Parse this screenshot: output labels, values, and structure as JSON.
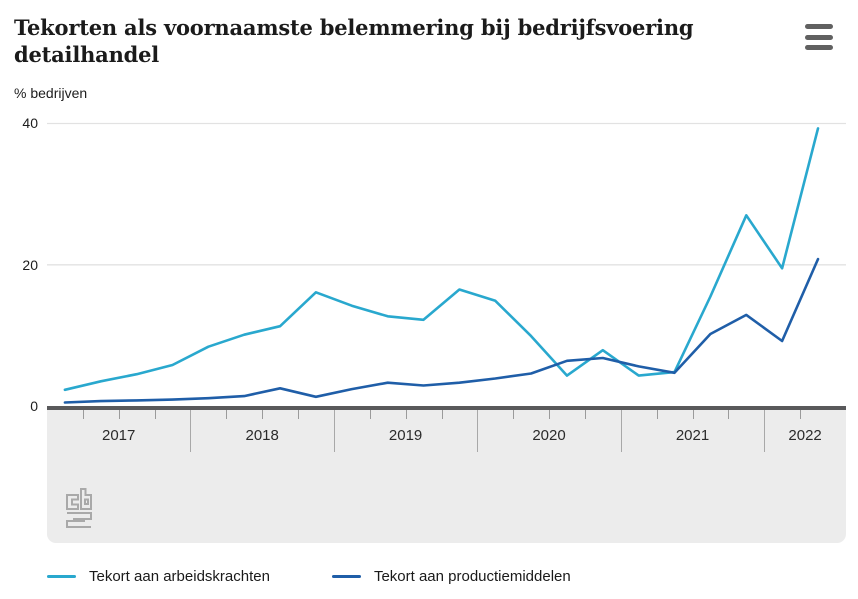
{
  "header": {
    "title": "Tekorten als voornaamste belemmering bij bedrijfsvoering detailhandel"
  },
  "subtitle": "% bedrijven",
  "icons": {
    "menu": "hamburger-menu-icon",
    "logo": "cbs-logo"
  },
  "chart_data": {
    "type": "line",
    "title": "Tekorten als voornaamste belemmering bij bedrijfsvoering detailhandel",
    "ylabel": "% bedrijven",
    "ylim": [
      0,
      40
    ],
    "yticks": [
      0,
      20,
      40
    ],
    "grid": true,
    "legend_position": "bottom",
    "x_years": [
      "2017",
      "2018",
      "2019",
      "2020",
      "2021",
      "2022"
    ],
    "points_per_year": [
      4,
      4,
      4,
      4,
      4,
      2
    ],
    "categories": [
      "2017Q1",
      "2017Q2",
      "2017Q3",
      "2017Q4",
      "2018Q1",
      "2018Q2",
      "2018Q3",
      "2018Q4",
      "2019Q1",
      "2019Q2",
      "2019Q3",
      "2019Q4",
      "2020Q1",
      "2020Q2",
      "2020Q3",
      "2020Q4",
      "2021Q1",
      "2021Q2",
      "2021Q3",
      "2021Q4",
      "2022Q1",
      "2022Q2"
    ],
    "series": [
      {
        "name": "Tekort aan arbeidskrachten",
        "color": "#29A8CE",
        "values": [
          2.3,
          3.5,
          4.5,
          5.8,
          8.4,
          10.1,
          11.3,
          16.1,
          14.2,
          12.7,
          12.2,
          16.5,
          14.9,
          9.9,
          4.3,
          7.9,
          4.3,
          4.8,
          15.5,
          27.0,
          19.5,
          39.3
        ]
      },
      {
        "name": "Tekort aan productiemiddelen",
        "color": "#1F5EA8",
        "values": [
          0.5,
          0.7,
          0.8,
          0.9,
          1.1,
          1.4,
          2.5,
          1.3,
          2.4,
          3.3,
          2.9,
          3.3,
          3.9,
          4.6,
          6.4,
          6.8,
          5.6,
          4.7,
          10.2,
          12.9,
          9.2,
          20.8
        ]
      }
    ]
  },
  "axis": {
    "ytick_labels": [
      "40",
      "20",
      "0"
    ]
  }
}
